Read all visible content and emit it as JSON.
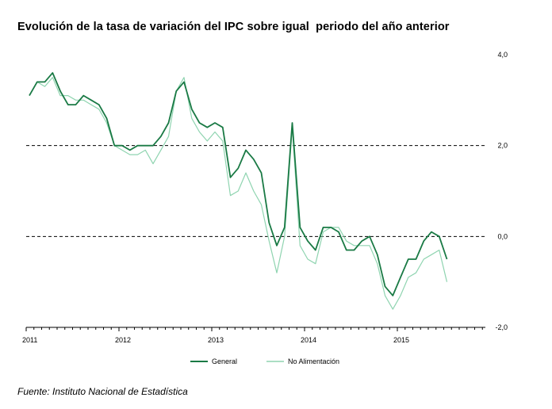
{
  "title": "Evolución de la tasa de variación del IPC sobre igual  periodo del año anterior",
  "source": "Fuente: Instituto Nacional de Estadística",
  "chart_data": {
    "type": "line",
    "title": "Evolución de la tasa de variación del IPC sobre igual  periodo del año anterior",
    "xlabel": "",
    "ylabel": "",
    "ylim": [
      -2.0,
      4.0
    ],
    "y_ticks": [
      "4,0",
      "2,0",
      "0,0",
      "-2,0"
    ],
    "y_tick_values": [
      4.0,
      2.0,
      0.0,
      -2.0
    ],
    "x_ticks": [
      "2011",
      "2012",
      "2013",
      "2014",
      "2015"
    ],
    "reference_lines": [
      2.0,
      0.0
    ],
    "y_axis_side": "right",
    "grid": false,
    "legend_position": "bottom",
    "x_start": "2011-01",
    "frequency": "monthly",
    "series": [
      {
        "name": "General",
        "color": "#1a7a45",
        "values": [
          3.1,
          3.4,
          3.4,
          3.6,
          3.2,
          2.9,
          2.9,
          3.1,
          3.0,
          2.9,
          2.6,
          2.0,
          2.0,
          1.9,
          2.0,
          2.0,
          2.0,
          2.2,
          2.5,
          3.2,
          3.4,
          2.8,
          2.5,
          2.4,
          2.5,
          2.4,
          1.3,
          1.5,
          1.9,
          1.7,
          1.4,
          0.3,
          -0.2,
          0.2,
          2.5,
          0.2,
          -0.1,
          -0.3,
          0.2,
          0.2,
          0.1,
          -0.3,
          -0.3,
          -0.1,
          0.0,
          -0.4,
          -1.1,
          -1.3,
          -0.9,
          -0.5,
          -0.5,
          -0.1,
          0.1,
          0.0,
          -0.5
        ]
      },
      {
        "name": "No Alimentación",
        "color": "#8fd4b0",
        "values": [
          3.1,
          3.4,
          3.3,
          3.5,
          3.1,
          3.1,
          3.0,
          3.0,
          2.9,
          2.8,
          2.5,
          2.0,
          1.9,
          1.8,
          1.8,
          1.9,
          1.6,
          1.9,
          2.2,
          3.2,
          3.5,
          2.6,
          2.3,
          2.1,
          2.3,
          2.1,
          0.9,
          1.0,
          1.4,
          1.0,
          0.7,
          -0.1,
          -0.8,
          0.0,
          2.4,
          -0.2,
          -0.5,
          -0.6,
          0.1,
          0.2,
          0.2,
          -0.1,
          -0.2,
          -0.2,
          -0.2,
          -0.6,
          -1.3,
          -1.6,
          -1.3,
          -0.9,
          -0.8,
          -0.5,
          -0.4,
          -0.3,
          -1.0
        ]
      }
    ]
  }
}
